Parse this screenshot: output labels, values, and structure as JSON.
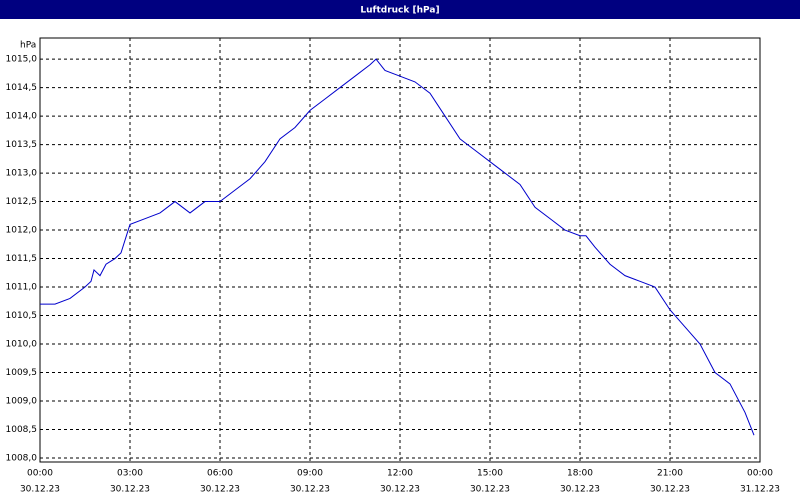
{
  "chart_data": {
    "type": "line",
    "title": "Luftdruck [hPa]",
    "y_label": "hPa",
    "x": [
      0,
      0.5,
      1.0,
      1.5,
      1.7,
      1.8,
      2.0,
      2.2,
      2.5,
      2.7,
      3.0,
      3.5,
      4.0,
      4.5,
      5.0,
      5.5,
      6.0,
      6.5,
      7.0,
      7.5,
      8.0,
      8.5,
      9.0,
      9.5,
      10.0,
      10.5,
      11.0,
      11.2,
      11.5,
      12.0,
      12.5,
      13.0,
      13.5,
      14.0,
      14.5,
      15.0,
      15.5,
      16.0,
      16.5,
      17.0,
      17.5,
      18.0,
      18.2,
      18.5,
      19.0,
      19.5,
      20.0,
      20.5,
      21.0,
      21.5,
      22.0,
      22.5,
      23.0,
      23.5,
      23.8
    ],
    "series": [
      {
        "name": "Luftdruck",
        "color": "#0000cc",
        "values": [
          1010.7,
          1010.7,
          1010.8,
          1011.0,
          1011.1,
          1011.3,
          1011.2,
          1011.4,
          1011.5,
          1011.6,
          1012.1,
          1012.2,
          1012.3,
          1012.5,
          1012.3,
          1012.5,
          1012.5,
          1012.7,
          1012.9,
          1013.2,
          1013.6,
          1013.8,
          1014.1,
          1014.3,
          1014.5,
          1014.7,
          1014.9,
          1015.0,
          1014.8,
          1014.7,
          1014.6,
          1014.4,
          1014.0,
          1013.6,
          1013.4,
          1013.2,
          1013.0,
          1012.8,
          1012.4,
          1012.2,
          1012.0,
          1011.9,
          1011.9,
          1011.7,
          1011.4,
          1011.2,
          1011.1,
          1011.0,
          1010.6,
          1010.3,
          1010.0,
          1009.5,
          1009.3,
          1008.8,
          1008.4
        ]
      }
    ],
    "xlim": [
      0,
      24
    ],
    "ylim": [
      1007.93,
      1015.37
    ],
    "xticks": [
      {
        "value": 0,
        "label": "00:00"
      },
      {
        "value": 3,
        "label": "03:00"
      },
      {
        "value": 6,
        "label": "06:00"
      },
      {
        "value": 9,
        "label": "09:00"
      },
      {
        "value": 12,
        "label": "12:00"
      },
      {
        "value": 15,
        "label": "15:00"
      },
      {
        "value": 18,
        "label": "18:00"
      },
      {
        "value": 21,
        "label": "21:00"
      },
      {
        "value": 24,
        "label": "00:00"
      }
    ],
    "xtick_dates": [
      "30.12.23",
      "30.12.23",
      "30.12.23",
      "30.12.23",
      "30.12.23",
      "30.12.23",
      "30.12.23",
      "30.12.23",
      "31.12.23"
    ],
    "yticks": [
      {
        "value": 1008.0,
        "label": "1008,0"
      },
      {
        "value": 1008.5,
        "label": "1008,5"
      },
      {
        "value": 1009.0,
        "label": "1009,0"
      },
      {
        "value": 1009.5,
        "label": "1009,5"
      },
      {
        "value": 1010.0,
        "label": "1010,0"
      },
      {
        "value": 1010.5,
        "label": "1010,5"
      },
      {
        "value": 1011.0,
        "label": "1011,0"
      },
      {
        "value": 1011.5,
        "label": "1011,5"
      },
      {
        "value": 1012.0,
        "label": "1012,0"
      },
      {
        "value": 1012.5,
        "label": "1012,5"
      },
      {
        "value": 1013.0,
        "label": "1013,0"
      },
      {
        "value": 1013.5,
        "label": "1013,5"
      },
      {
        "value": 1014.0,
        "label": "1014,0"
      },
      {
        "value": 1014.5,
        "label": "1014,5"
      },
      {
        "value": 1015.0,
        "label": "1015,0"
      }
    ],
    "grid": true
  }
}
